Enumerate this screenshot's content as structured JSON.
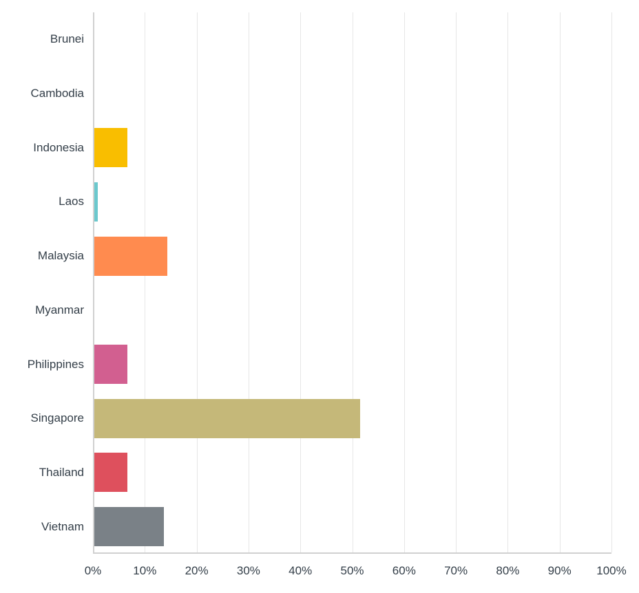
{
  "chart_data": {
    "type": "bar",
    "orientation": "horizontal",
    "title": "",
    "xlabel": "",
    "ylabel": "",
    "xlim": [
      0,
      100
    ],
    "grid": true,
    "categories": [
      "Brunei",
      "Cambodia",
      "Indonesia",
      "Laos",
      "Malaysia",
      "Myanmar",
      "Philippines",
      "Singapore",
      "Thailand",
      "Vietnam"
    ],
    "values": [
      0,
      0,
      6.41,
      0.64,
      14.1,
      0,
      6.41,
      51.28,
      6.41,
      13.46
    ],
    "colors": [
      "#6bc8cd",
      "#fa9f49",
      "#f9be00",
      "#6bc8cd",
      "#ff8b4f",
      "#7d5ba6",
      "#d25f90",
      "#c5b879",
      "#de505d",
      "#7a8187"
    ],
    "x_ticks": [
      "0%",
      "10%",
      "20%",
      "30%",
      "40%",
      "50%",
      "60%",
      "70%",
      "80%",
      "90%",
      "100%"
    ]
  }
}
